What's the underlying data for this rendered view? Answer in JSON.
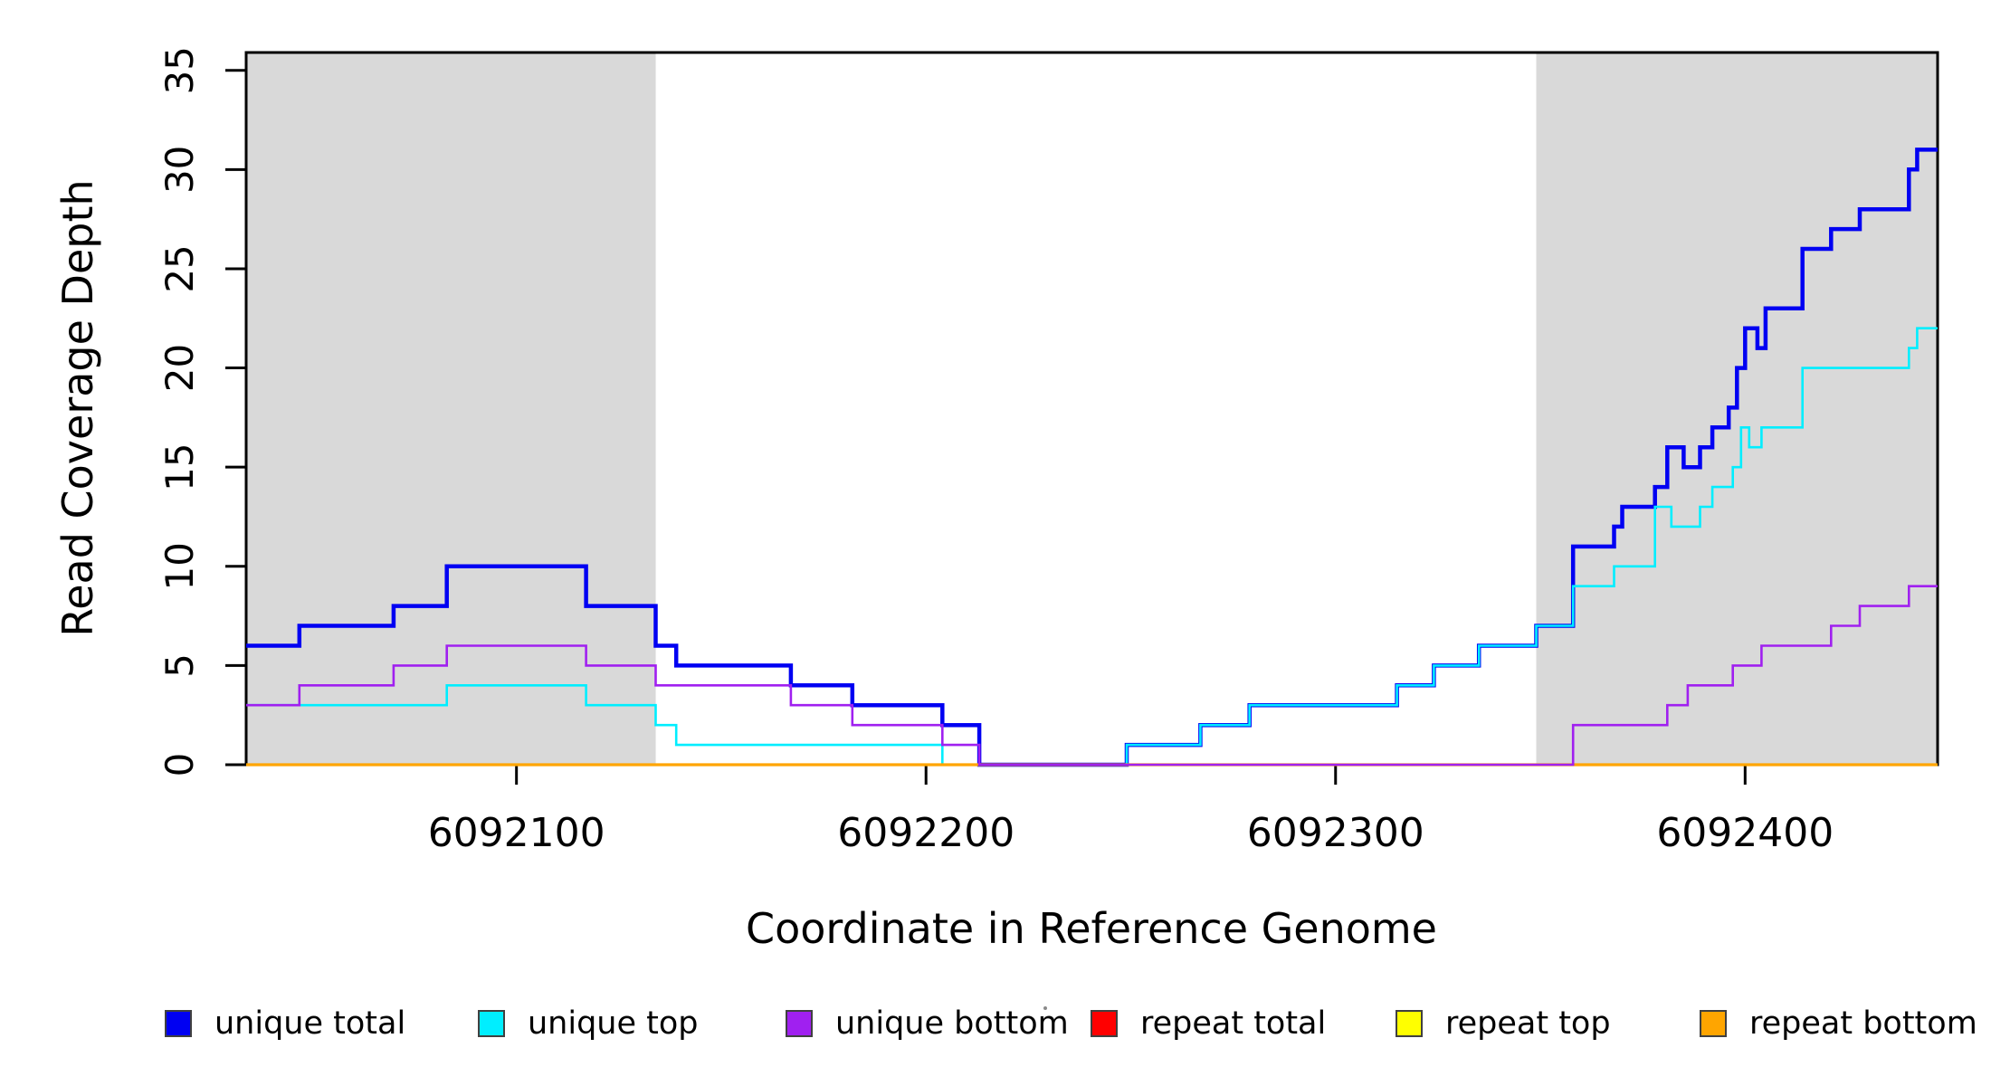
{
  "figure": {
    "background": "#ffffff",
    "frame_color": "#000000",
    "shading_color": "#d9d9d9"
  },
  "chart_data": {
    "type": "line",
    "step": "hv",
    "title": "",
    "xlabel": "Coordinate in Reference Genome",
    "ylabel": "Read Coverage Depth",
    "x_range": [
      6092034,
      6092447
    ],
    "y_range": [
      0,
      35.9
    ],
    "grid": false,
    "legend_position": "bottom",
    "x_ticks": [
      6092100,
      6092200,
      6092300,
      6092400
    ],
    "x_tick_labels": [
      "6092100",
      "6092200",
      "6092300",
      "6092400"
    ],
    "y_ticks": [
      0,
      5,
      10,
      15,
      20,
      25,
      30,
      35
    ],
    "y_tick_labels": [
      "0",
      "5",
      "10",
      "15",
      "20",
      "25",
      "30",
      "35"
    ],
    "shaded_regions": [
      {
        "x_start": 6092034,
        "x_end": 6092134
      },
      {
        "x_start": 6092349,
        "x_end": 6092447
      }
    ],
    "series": [
      {
        "name": "unique total",
        "color": "#0000f2",
        "width": 4.5,
        "points": [
          [
            6092034,
            6
          ],
          [
            6092047,
            7
          ],
          [
            6092070,
            8
          ],
          [
            6092083,
            10
          ],
          [
            6092117,
            8
          ],
          [
            6092134,
            6
          ],
          [
            6092139,
            5
          ],
          [
            6092167,
            4
          ],
          [
            6092182,
            3
          ],
          [
            6092204,
            2
          ],
          [
            6092213,
            0
          ],
          [
            6092249,
            1
          ],
          [
            6092267,
            2
          ],
          [
            6092279,
            3
          ],
          [
            6092315,
            4
          ],
          [
            6092324,
            5
          ],
          [
            6092335,
            6
          ],
          [
            6092349,
            7
          ],
          [
            6092358,
            11
          ],
          [
            6092368,
            12
          ],
          [
            6092370,
            13
          ],
          [
            6092378,
            14
          ],
          [
            6092381,
            16
          ],
          [
            6092385,
            15
          ],
          [
            6092389,
            16
          ],
          [
            6092392,
            17
          ],
          [
            6092396,
            18
          ],
          [
            6092398,
            20
          ],
          [
            6092400,
            22
          ],
          [
            6092403,
            21
          ],
          [
            6092405,
            23
          ],
          [
            6092414,
            26
          ],
          [
            6092421,
            27
          ],
          [
            6092428,
            28
          ],
          [
            6092440,
            30
          ],
          [
            6092442,
            31
          ],
          [
            6092447,
            31
          ]
        ]
      },
      {
        "name": "unique top",
        "color": "#00eeff",
        "width": 2.6,
        "points": [
          [
            6092034,
            3
          ],
          [
            6092083,
            4
          ],
          [
            6092117,
            3
          ],
          [
            6092134,
            2
          ],
          [
            6092139,
            1
          ],
          [
            6092204,
            0
          ],
          [
            6092249,
            1
          ],
          [
            6092267,
            2
          ],
          [
            6092279,
            3
          ],
          [
            6092315,
            4
          ],
          [
            6092324,
            5
          ],
          [
            6092335,
            6
          ],
          [
            6092349,
            7
          ],
          [
            6092358,
            9
          ],
          [
            6092368,
            10
          ],
          [
            6092378,
            13
          ],
          [
            6092382,
            12
          ],
          [
            6092389,
            13
          ],
          [
            6092392,
            14
          ],
          [
            6092397,
            15
          ],
          [
            6092399,
            17
          ],
          [
            6092401,
            16
          ],
          [
            6092404,
            17
          ],
          [
            6092414,
            20
          ],
          [
            6092440,
            21
          ],
          [
            6092442,
            22
          ],
          [
            6092447,
            22
          ]
        ]
      },
      {
        "name": "unique bottom",
        "color": "#a020f0",
        "width": 2.6,
        "points": [
          [
            6092034,
            3
          ],
          [
            6092047,
            4
          ],
          [
            6092070,
            5
          ],
          [
            6092083,
            6
          ],
          [
            6092117,
            5
          ],
          [
            6092134,
            4
          ],
          [
            6092167,
            3
          ],
          [
            6092182,
            2
          ],
          [
            6092204,
            1
          ],
          [
            6092213,
            0
          ],
          [
            6092358,
            2
          ],
          [
            6092381,
            3
          ],
          [
            6092386,
            4
          ],
          [
            6092397,
            5
          ],
          [
            6092404,
            6
          ],
          [
            6092421,
            7
          ],
          [
            6092428,
            8
          ],
          [
            6092440,
            9
          ],
          [
            6092447,
            9
          ]
        ]
      },
      {
        "name": "repeat total",
        "color": "#ff0000",
        "width": 2.2,
        "points": [
          [
            6092034,
            0
          ],
          [
            6092447,
            0
          ]
        ]
      },
      {
        "name": "repeat top",
        "color": "#ffff00",
        "width": 2.2,
        "points": [
          [
            6092034,
            0
          ],
          [
            6092447,
            0
          ]
        ]
      },
      {
        "name": "repeat bottom",
        "color": "#ffa500",
        "width": 3.2,
        "points": [
          [
            6092034,
            0
          ],
          [
            6092447,
            0
          ]
        ]
      }
    ],
    "draw_order": [
      0,
      1,
      3,
      4,
      5,
      2
    ]
  },
  "legend": {
    "items": [
      {
        "label": "unique total",
        "color": "#0000f2"
      },
      {
        "label": "unique top",
        "color": "#00eeff"
      },
      {
        "label": "unique bottom",
        "color": "#a020f0"
      },
      {
        "label": "repeat total",
        "color": "#ff0000"
      },
      {
        "label": "repeat top",
        "color": "#ffff00"
      },
      {
        "label": "repeat bottom",
        "color": "#ffa500"
      }
    ]
  }
}
